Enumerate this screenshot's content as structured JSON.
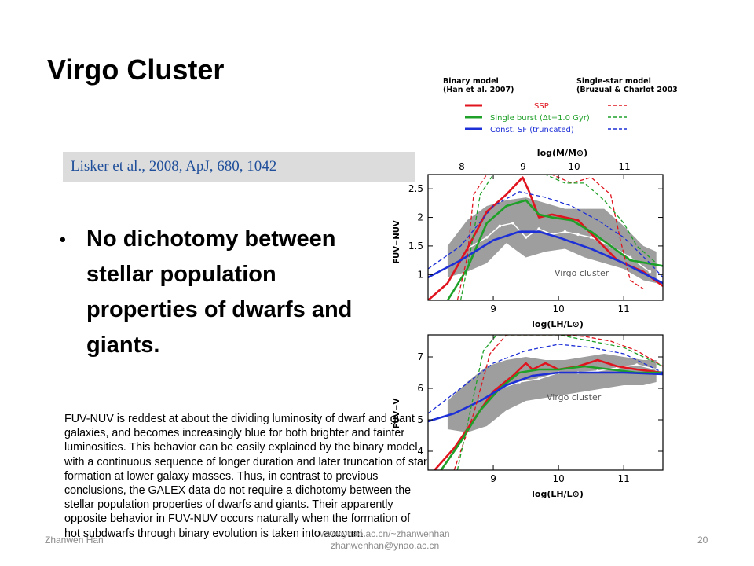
{
  "slide": {
    "title": "Virgo Cluster",
    "citation": "Lisker et al., 2008, ApJ, 680, 1042",
    "bullet": "No dichotomy between stellar population properties of dwarfs and giants.",
    "note": "FUV-NUV is reddest at about the dividing luminosity of dwarf and giant galaxies, and becomes increasingly blue for both brighter and fainter luminosities. This behavior can be easily explained by the binary model with a continuous sequence of longer duration and later truncation of star formation at lower galaxy masses. Thus, in contrast to previous conclusions, the GALEX data do not require a dichotomy between the stellar population properties of dwarfs and giants. Their apparently opposite behavior in FUV-NUV occurs naturally when the formation of hot subdwarfs through binary evolution is taken into account.",
    "footer_left": "Zhanwen Han",
    "footer_mid_1": "www.ynao.ac.cn/~zhanwenhan",
    "footer_mid_2": "zhanwenhan@ynao.ac.cn",
    "page_number": "20"
  },
  "legend": {
    "binary_title": "Binary model",
    "binary_ref": "(Han et al. 2007)",
    "single_title": "Single-star model",
    "single_ref": "(Bruzual & Charlot 2003)",
    "entries": [
      {
        "label": "SSP",
        "color": "#e0141e"
      },
      {
        "label": "Single burst (Δt=1.0 Gyr)",
        "color": "#1fa028"
      },
      {
        "label": "Const. SF (truncated)",
        "color": "#1d2fd6"
      }
    ]
  },
  "chart_data": [
    {
      "type": "line",
      "top_axis_label": "log(M/M⊙)",
      "top_ticks": [
        "8",
        "9",
        "10",
        "11"
      ],
      "ylabel": "FUV−NUV",
      "xlabel": "log(LH/L⊙)",
      "x_ticks": [
        "9",
        "10",
        "11"
      ],
      "y_ticks": [
        "1",
        "1.5",
        "2",
        "2.5"
      ],
      "annotation": "Virgo cluster",
      "xlim": [
        8.0,
        11.6
      ],
      "ylim": [
        0.55,
        2.75
      ],
      "band_x": [
        8.3,
        8.6,
        8.9,
        9.2,
        9.5,
        9.8,
        10.1,
        10.4,
        10.7,
        11.0,
        11.3,
        11.5
      ],
      "band_upper": [
        1.5,
        1.95,
        2.2,
        2.3,
        2.35,
        2.25,
        2.15,
        2.15,
        2.15,
        1.85,
        1.5,
        1.4
      ],
      "band_lower": [
        0.95,
        1.05,
        1.2,
        1.55,
        1.3,
        1.4,
        1.45,
        1.3,
        1.2,
        1.1,
        0.9,
        0.85
      ],
      "median_x": [
        8.6,
        8.9,
        9.1,
        9.3,
        9.5,
        9.7,
        9.9,
        10.1,
        10.3,
        10.5,
        10.8,
        11.1,
        11.4
      ],
      "median_y": [
        1.45,
        1.65,
        1.85,
        1.9,
        1.65,
        1.8,
        1.7,
        1.75,
        1.7,
        1.65,
        1.5,
        1.3,
        1.05
      ],
      "series": [
        {
          "name": "SSP",
          "style": "solid",
          "color": "#e0141e",
          "x": [
            8.0,
            8.3,
            8.6,
            8.9,
            9.2,
            9.45,
            9.55,
            9.7,
            9.9,
            10.1,
            10.3,
            10.6,
            10.9,
            11.3,
            11.6
          ],
          "y": [
            0.55,
            0.85,
            1.45,
            2.1,
            2.4,
            2.7,
            2.45,
            2.0,
            2.05,
            2.0,
            1.95,
            1.6,
            1.25,
            1.05,
            0.8
          ]
        },
        {
          "name": "Single burst (Δt=1.0 Gyr)",
          "style": "solid",
          "color": "#1fa028",
          "x": [
            8.3,
            8.6,
            8.9,
            9.2,
            9.5,
            9.7,
            9.9,
            10.2,
            10.5,
            10.8,
            11.1,
            11.6
          ],
          "y": [
            0.55,
            1.1,
            1.9,
            2.2,
            2.3,
            2.05,
            2.0,
            1.95,
            1.75,
            1.5,
            1.25,
            1.15
          ]
        },
        {
          "name": "Const. SF (truncated)",
          "style": "solid",
          "color": "#1d2fd6",
          "x": [
            8.0,
            8.5,
            9.0,
            9.4,
            9.7,
            10.0,
            10.5,
            11.0,
            11.6
          ],
          "y": [
            0.95,
            1.25,
            1.6,
            1.75,
            1.75,
            1.65,
            1.45,
            1.2,
            0.85
          ]
        },
        {
          "name": "SSP",
          "style": "dashed",
          "color": "#e0141e",
          "x": [
            8.45,
            8.6,
            8.7,
            8.9,
            9.3,
            9.6,
            9.9,
            10.2,
            10.5,
            10.8,
            10.95,
            11.1,
            11.3
          ],
          "y": [
            0.55,
            1.3,
            2.4,
            2.75,
            2.75,
            2.75,
            2.75,
            2.6,
            2.7,
            2.4,
            1.6,
            0.9,
            0.75
          ]
        },
        {
          "name": "Single burst (Δt=1.0 Gyr)",
          "style": "dashed",
          "color": "#1fa028",
          "x": [
            8.5,
            8.65,
            8.8,
            9.0,
            9.4,
            9.8,
            10.1,
            10.4,
            10.7,
            11.0,
            11.2,
            11.5
          ],
          "y": [
            0.55,
            1.4,
            2.4,
            2.75,
            2.75,
            2.75,
            2.6,
            2.6,
            2.3,
            1.9,
            1.5,
            1.2
          ]
        },
        {
          "name": "Const. SF (truncated)",
          "style": "dashed",
          "color": "#1d2fd6",
          "x": [
            8.0,
            8.5,
            9.0,
            9.4,
            9.8,
            10.2,
            10.6,
            11.0,
            11.4,
            11.6
          ],
          "y": [
            1.1,
            1.5,
            2.2,
            2.45,
            2.35,
            2.2,
            1.95,
            1.65,
            1.2,
            0.95
          ]
        }
      ]
    },
    {
      "type": "line",
      "ylabel": "FUV−V",
      "xlabel": "log(LH/L⊙)",
      "x_ticks": [
        "9",
        "10",
        "11"
      ],
      "y_ticks": [
        "4",
        "5",
        "6",
        "7"
      ],
      "annotation": "Virgo cluster",
      "xlim": [
        8.0,
        11.6
      ],
      "ylim": [
        3.4,
        7.7
      ],
      "band_x": [
        8.3,
        8.6,
        8.9,
        9.2,
        9.5,
        9.8,
        10.1,
        10.4,
        10.7,
        11.0,
        11.3,
        11.5
      ],
      "band_upper": [
        5.6,
        6.2,
        6.7,
        6.9,
        7.0,
        6.9,
        6.9,
        7.0,
        7.1,
        7.0,
        6.9,
        6.9
      ],
      "band_lower": [
        4.7,
        4.6,
        4.8,
        5.3,
        5.6,
        5.7,
        5.8,
        5.9,
        6.0,
        6.1,
        6.1,
        6.2
      ],
      "median_x": [
        8.8,
        9.1,
        9.4,
        9.7,
        10.0,
        10.3,
        10.6,
        10.9,
        11.2,
        11.5
      ],
      "median_y": [
        5.6,
        6.0,
        6.2,
        6.3,
        6.5,
        6.5,
        6.55,
        6.65,
        6.75,
        6.6
      ],
      "series": [
        {
          "name": "SSP",
          "style": "solid",
          "color": "#e0141e",
          "x": [
            8.1,
            8.4,
            8.7,
            9.0,
            9.3,
            9.5,
            9.6,
            9.8,
            10.0,
            10.3,
            10.6,
            10.9,
            11.2,
            11.6
          ],
          "y": [
            3.4,
            4.1,
            5.0,
            5.9,
            6.4,
            6.8,
            6.6,
            6.8,
            6.6,
            6.7,
            6.9,
            6.7,
            6.6,
            6.5
          ]
        },
        {
          "name": "Single burst (Δt=1.0 Gyr)",
          "style": "solid",
          "color": "#1fa028",
          "x": [
            8.2,
            8.5,
            8.8,
            9.1,
            9.4,
            9.7,
            10.0,
            10.4,
            10.8,
            11.2,
            11.6
          ],
          "y": [
            3.4,
            4.3,
            5.3,
            6.0,
            6.5,
            6.6,
            6.6,
            6.7,
            6.6,
            6.5,
            6.5
          ]
        },
        {
          "name": "Const. SF (truncated)",
          "style": "solid",
          "color": "#1d2fd6",
          "x": [
            8.0,
            8.4,
            8.8,
            9.2,
            9.6,
            10.0,
            10.5,
            11.0,
            11.6
          ],
          "y": [
            4.95,
            5.2,
            5.6,
            6.1,
            6.4,
            6.5,
            6.5,
            6.5,
            6.45
          ]
        },
        {
          "name": "SSP",
          "style": "dashed",
          "color": "#e0141e",
          "x": [
            8.4,
            8.7,
            8.95,
            9.2,
            9.6,
            10.0,
            10.4,
            10.8,
            11.2,
            11.6
          ],
          "y": [
            3.4,
            5.2,
            7.1,
            7.7,
            7.7,
            7.7,
            7.65,
            7.5,
            7.2,
            6.7
          ]
        },
        {
          "name": "Single burst (Δt=1.0 Gyr)",
          "style": "dashed",
          "color": "#1fa028",
          "x": [
            8.45,
            8.65,
            8.85,
            9.05,
            9.5,
            10.0,
            10.5,
            11.0,
            11.3,
            11.6
          ],
          "y": [
            3.4,
            5.3,
            7.2,
            7.7,
            7.7,
            7.7,
            7.5,
            7.3,
            7.0,
            6.7
          ]
        },
        {
          "name": "Const. SF (truncated)",
          "style": "dashed",
          "color": "#1d2fd6",
          "x": [
            8.0,
            8.5,
            9.0,
            9.5,
            10.0,
            10.5,
            11.0,
            11.6
          ],
          "y": [
            5.2,
            6.0,
            6.8,
            7.2,
            7.4,
            7.3,
            7.1,
            6.5
          ]
        }
      ]
    }
  ]
}
